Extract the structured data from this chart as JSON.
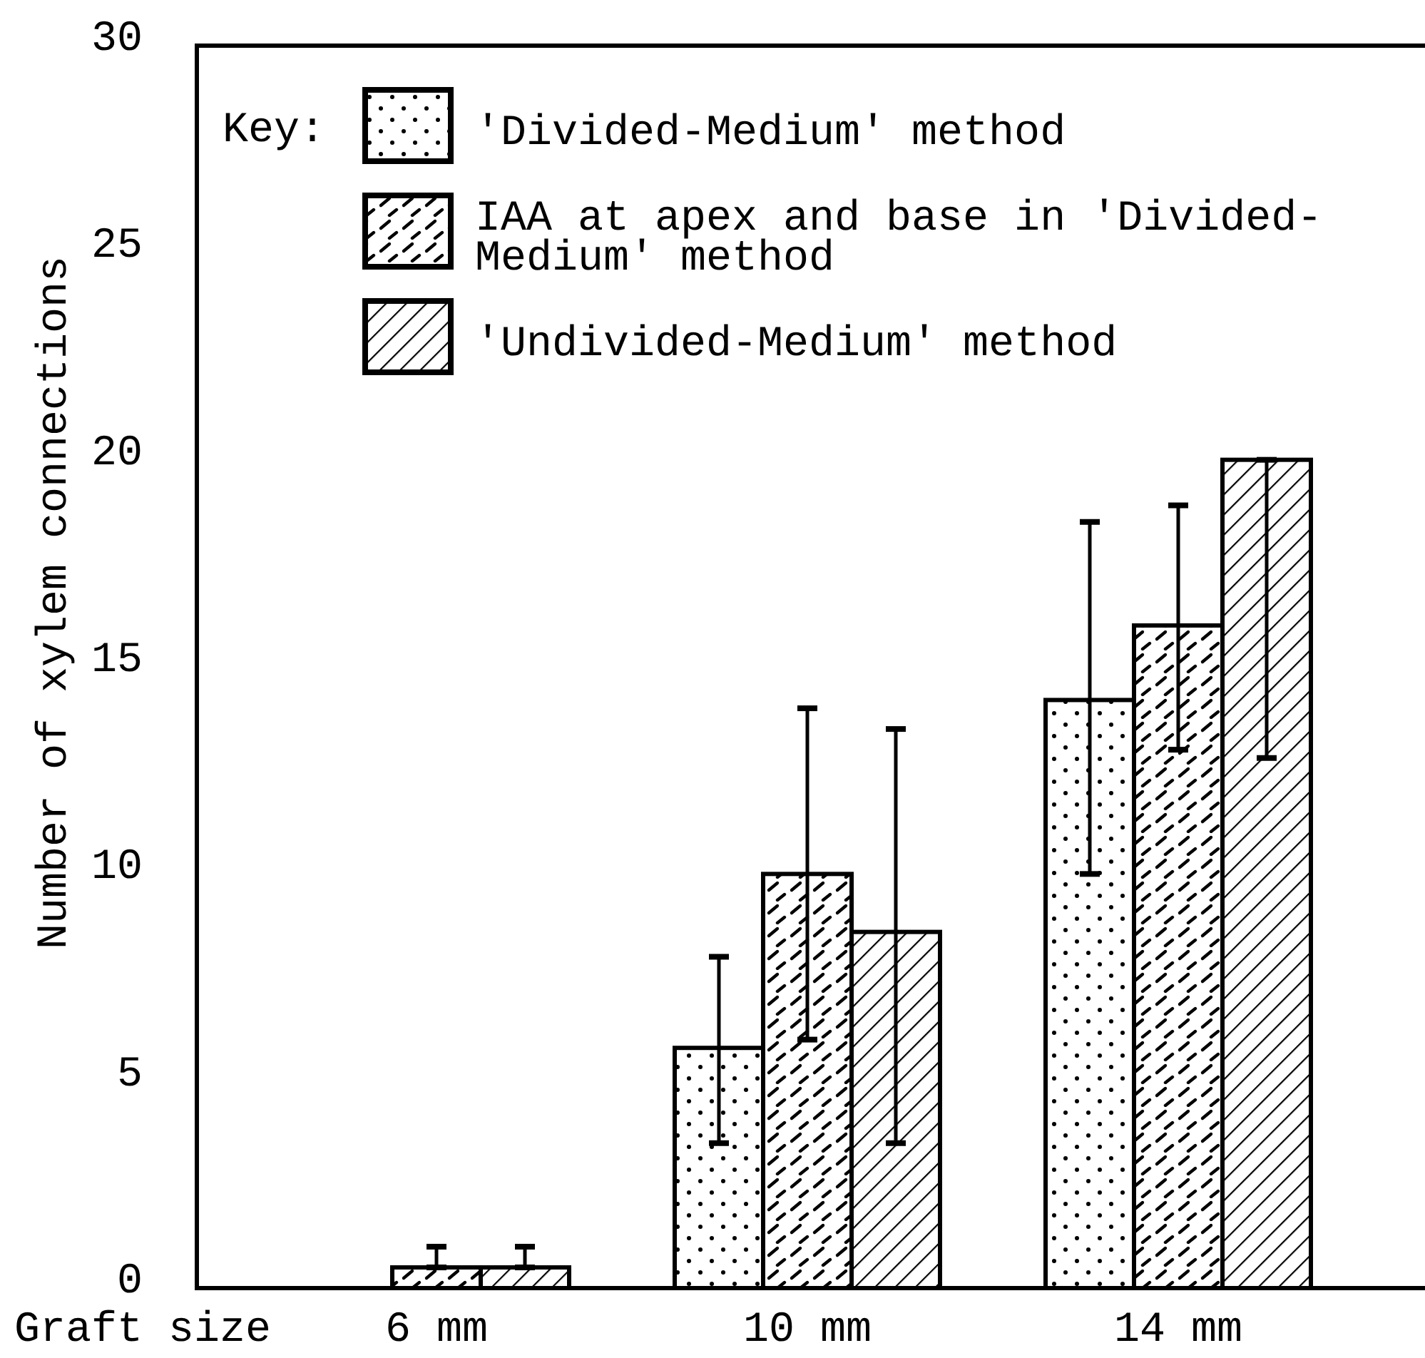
{
  "chart_data": {
    "type": "bar",
    "xlabel": "Graft size",
    "ylabel": "Number of xylem connections",
    "legend_title": "Key:",
    "legend": "top",
    "categories": [
      "6 mm",
      "10 mm",
      "14 mm"
    ],
    "ylim": [
      0,
      30
    ],
    "yticks": [
      0,
      5,
      10,
      15,
      20,
      25,
      30
    ],
    "series": [
      {
        "name": "'Divided-Medium' method",
        "color": "#000000",
        "values": [
          null,
          5.8,
          14.2
        ],
        "errors": [
          null,
          [
            3.5,
            8.0
          ],
          [
            10.0,
            18.5
          ]
        ]
      },
      {
        "name": "IAA at apex and base in 'Divided-Medium' method",
        "color": "#000000",
        "values": [
          0.5,
          10.0,
          16.0
        ],
        "errors": [
          [
            0.5,
            1.0
          ],
          [
            6.0,
            14.0
          ],
          [
            13.0,
            18.9
          ]
        ]
      },
      {
        "name": "'Undivided-Medium' method",
        "color": "#000000",
        "values": [
          0.5,
          8.6,
          20.0
        ],
        "errors": [
          [
            0.5,
            1.0
          ],
          [
            3.5,
            13.5
          ],
          [
            12.8,
            20.0
          ]
        ]
      }
    ]
  }
}
